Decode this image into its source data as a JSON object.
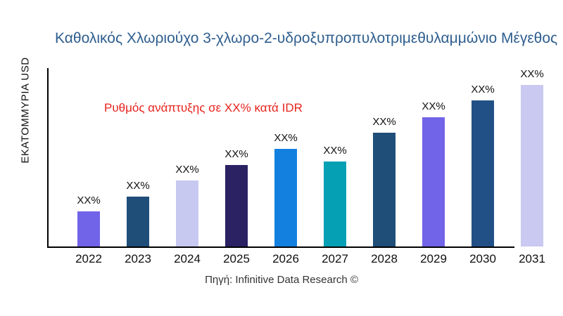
{
  "chart_data": {
    "type": "bar",
    "title": "Καθολικός Χλωριούχο 3-χλωρο-2-υδροξυπροπυλοτριμεθυλαμμώνιο Μέγεθος",
    "ylabel": "ΕΚΑΤΟΜΜΥΡΙΑ USD",
    "xlabel": "",
    "annotation": "Ρυθμός ανάπτυξης σε XX% κατά IDR",
    "source": "Πηγή: Infinitive Data Research ©",
    "categories": [
      "2022",
      "2023",
      "2024",
      "2025",
      "2026",
      "2027",
      "2028",
      "2029",
      "2030",
      "2031"
    ],
    "values": [
      50,
      71,
      94,
      116,
      139,
      121,
      162,
      184,
      208,
      230
    ],
    "values_note": "numeric values are masked as XX% in the figure; values are estimated relative bar heights",
    "data_labels": [
      "XX%",
      "XX%",
      "XX%",
      "XX%",
      "XX%",
      "XX%",
      "XX%",
      "XX%",
      "XX%",
      "XX%"
    ],
    "bar_colors": [
      "#7264e8",
      "#1f4e79",
      "#c8c9f0",
      "#2a2263",
      "#1380e0",
      "#06a0b5",
      "#1f4e79",
      "#7264e8",
      "#215086",
      "#c9c9f1"
    ],
    "title_color": "#2e5e8e",
    "annotation_color": "#e8231e",
    "axis_color": "#000000",
    "grid": false,
    "legend": "none"
  }
}
